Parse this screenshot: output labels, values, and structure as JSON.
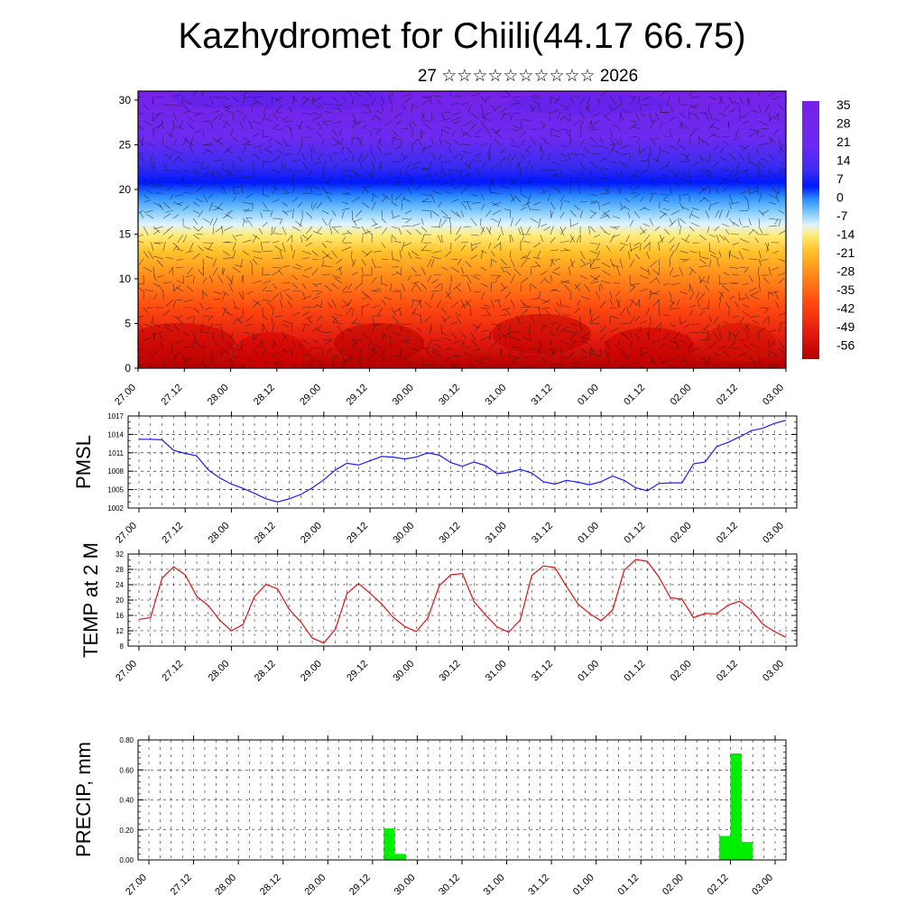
{
  "title": "Kazhydromet for Chiili(44.17 66.75)",
  "subtitle": "27 ☆☆☆☆☆☆☆☆☆☆ 2026",
  "x_tick_labels": [
    "27.00",
    "27.12",
    "28.00",
    "28.12",
    "29.00",
    "29.12",
    "30.00",
    "30.12",
    "31.00",
    "31.12",
    "01.00",
    "01.12",
    "02.00",
    "02.12",
    "03.00"
  ],
  "chart_data": [
    {
      "type": "heatmap",
      "yticks": [
        "0",
        "5",
        "10",
        "15",
        "20",
        "25",
        "30"
      ],
      "ylim": [
        0,
        31
      ],
      "colorbar_labels": [
        "35",
        "28",
        "21",
        "14",
        "7",
        "0",
        "-7",
        "-14",
        "-21",
        "-28",
        "-35",
        "-42",
        "-49",
        "-56"
      ],
      "colors": {
        "hot": "#cc0000",
        "warm": "#ff8800",
        "mild": "#ffe26b",
        "cool": "#9fdcff",
        "cold": "#3030ff",
        "coldest": "#7a1fe0"
      }
    },
    {
      "type": "line",
      "ylabel": "PMSL",
      "ylim": [
        1002,
        1017
      ],
      "yticks": [
        "1002",
        "1005",
        "1008",
        "1011",
        "1014",
        "1017"
      ],
      "color": "#1a1aff",
      "values": [
        1013.2,
        1013.2,
        1013.1,
        1011.4,
        1010.9,
        1010.5,
        1008.2,
        1006.9,
        1005.9,
        1005.2,
        1004.4,
        1003.5,
        1003.0,
        1003.5,
        1004.2,
        1005.3,
        1006.6,
        1008.2,
        1009.3,
        1009.0,
        1009.7,
        1010.4,
        1010.3,
        1010.0,
        1010.3,
        1011.0,
        1010.6,
        1009.4,
        1008.8,
        1009.5,
        1008.9,
        1007.6,
        1007.8,
        1008.3,
        1007.7,
        1006.3,
        1005.9,
        1006.5,
        1006.2,
        1005.8,
        1006.3,
        1007.2,
        1006.5,
        1005.3,
        1004.8,
        1006.0,
        1006.1,
        1006.1,
        1009.2,
        1009.5,
        1012.0,
        1012.7,
        1013.6,
        1014.6,
        1015.0,
        1015.8,
        1016.3
      ]
    },
    {
      "type": "line",
      "ylabel": "TEMP at 2 M",
      "ylim": [
        8,
        32
      ],
      "yticks": [
        "8",
        "12",
        "16",
        "20",
        "24",
        "28",
        "32"
      ],
      "color": "#e01010",
      "values": [
        15.0,
        15.4,
        25.7,
        28.7,
        26.6,
        21.0,
        18.6,
        14.7,
        12.0,
        13.6,
        20.9,
        24.1,
        22.9,
        17.6,
        14.3,
        10.1,
        8.8,
        12.4,
        21.7,
        24.3,
        21.8,
        19.0,
        15.5,
        13.1,
        11.8,
        15.3,
        23.8,
        26.6,
        26.9,
        19.6,
        16.1,
        13.0,
        11.6,
        14.8,
        26.4,
        28.9,
        28.5,
        23.6,
        19.0,
        16.5,
        14.6,
        17.4,
        27.8,
        30.6,
        30.1,
        26.0,
        20.6,
        20.2,
        15.4,
        16.5,
        16.4,
        18.7,
        19.7,
        17.4,
        13.7,
        11.8,
        10.3
      ]
    },
    {
      "type": "bar",
      "ylabel": "PRECIP, mm",
      "ylim": [
        0,
        0.8
      ],
      "yticks": [
        "0.00",
        "0.20",
        "0.40",
        "0.60",
        "0.80"
      ],
      "color": "#00ee00",
      "values": [
        0,
        0,
        0,
        0,
        0,
        0,
        0,
        0,
        0,
        0,
        0,
        0,
        0,
        0,
        0,
        0,
        0,
        0,
        0,
        0,
        0,
        0.21,
        0.04,
        0,
        0,
        0,
        0,
        0,
        0,
        0,
        0,
        0,
        0,
        0,
        0,
        0,
        0,
        0,
        0,
        0,
        0,
        0,
        0,
        0,
        0,
        0,
        0,
        0,
        0,
        0,
        0,
        0.16,
        0.71,
        0.12,
        0,
        0,
        0
      ]
    }
  ]
}
